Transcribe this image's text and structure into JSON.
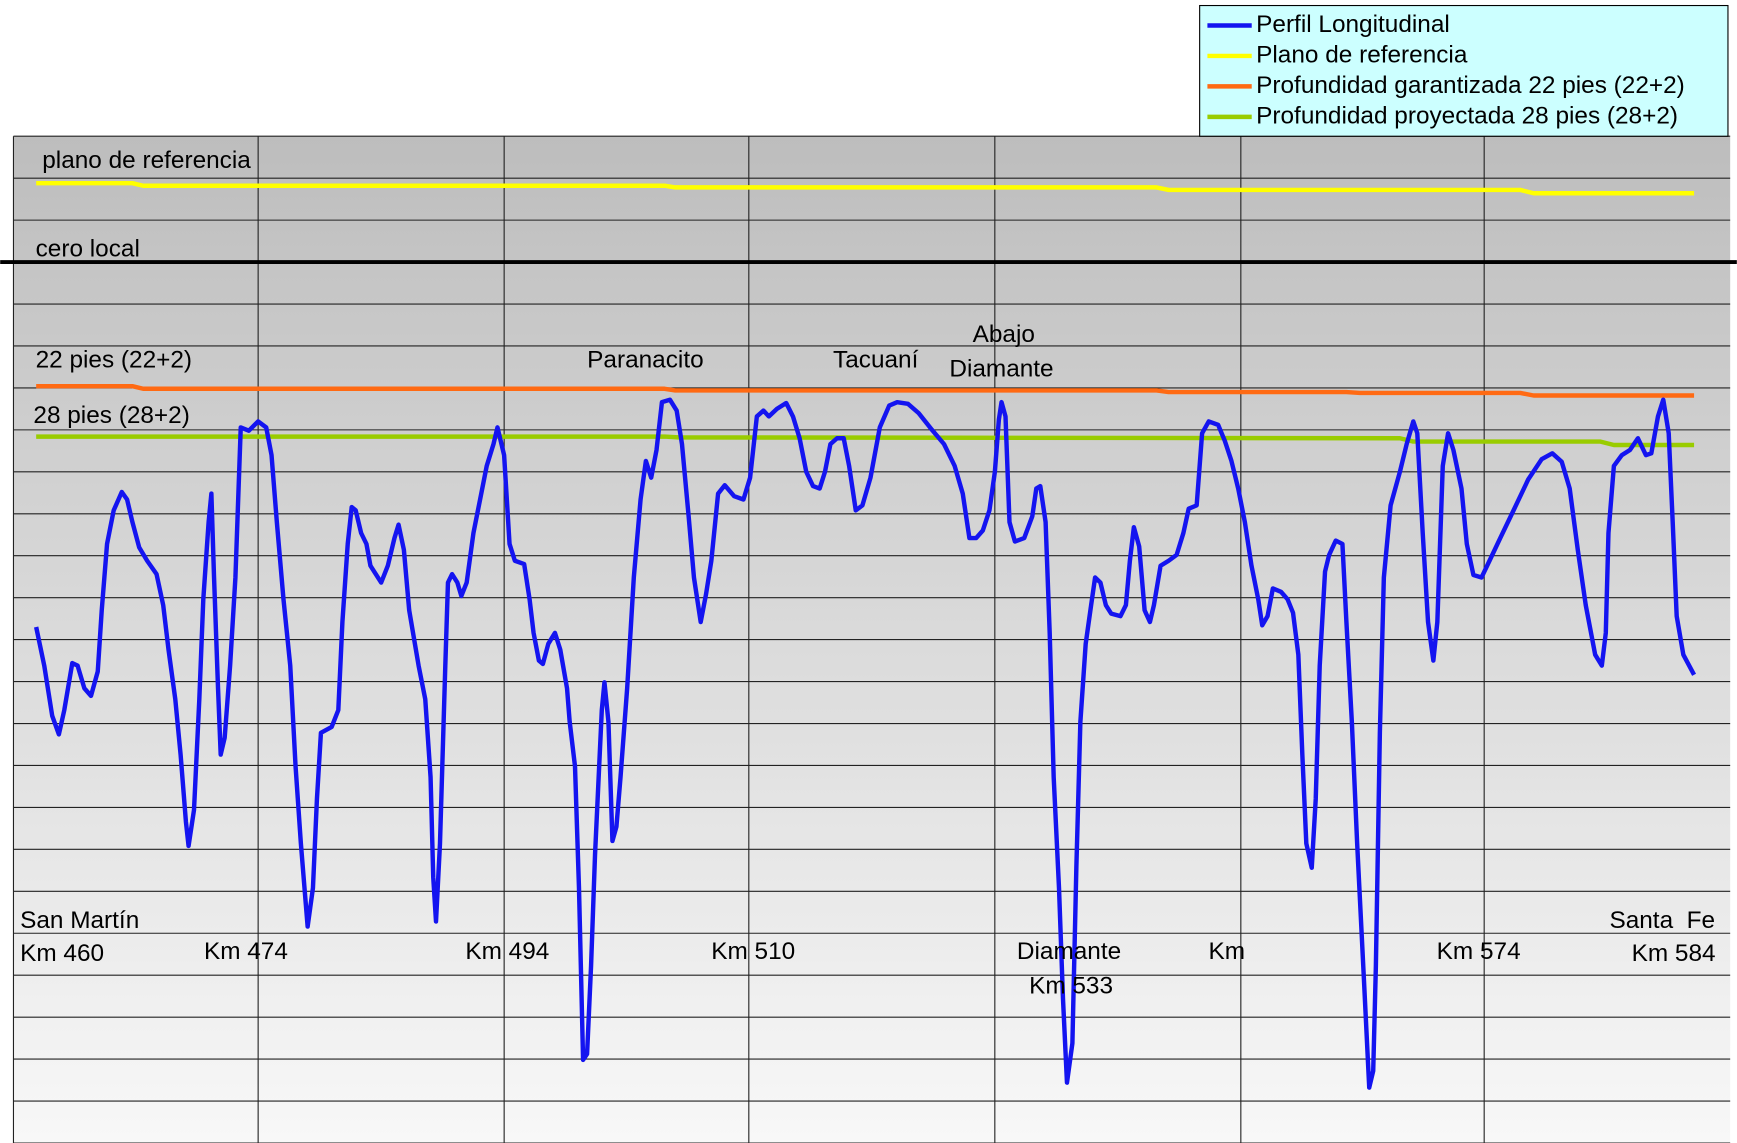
{
  "chart_data": {
    "type": "line",
    "xlim": [
      458.3,
      586.7
    ],
    "xticks": [
      476.6,
      495,
      513.3,
      531.7,
      550.1,
      568.3
    ],
    "ylim": [
      -105,
      15
    ],
    "yticks": [
      -105,
      -100,
      -95,
      -90,
      -85,
      -80,
      -75,
      -70,
      -65,
      -60,
      -55,
      -50,
      -45,
      -40,
      -35,
      -30,
      -25,
      -20,
      -15,
      -10,
      -5,
      0,
      5,
      10,
      15
    ],
    "grid": true,
    "legend": "top-right",
    "reference_lines": [
      {
        "label": "cero local",
        "value": 0,
        "color": "#000000"
      }
    ],
    "annotations": [
      "plano de referencia",
      "22 pies (22+2)",
      "28 pies (28+2)",
      "Paranacito",
      "Tacuaní",
      "Abajo",
      "Diamante",
      "San Martín",
      "Km 460",
      "Km 474",
      "Km 494",
      "Km 510",
      "Diamante",
      "Km 533",
      "Km",
      "Km 574",
      "Santa  Fe",
      "Km 584"
    ],
    "series": [
      {
        "name": "Perfil Longitudinal",
        "color": "#1414f0",
        "x": [
          460.0,
          460.6,
          461.2,
          461.7,
          462.1,
          462.7,
          463.1,
          463.6,
          464.1,
          464.6,
          464.9,
          465.3,
          465.8,
          466.4,
          466.8,
          467.2,
          467.7,
          468.3,
          469.0,
          469.5,
          469.9,
          470.4,
          470.8,
          471.2,
          471.4,
          471.8,
          472.2,
          472.5,
          472.9,
          473.1,
          473.3,
          473.6,
          473.8,
          474.1,
          474.5,
          474.9,
          475.3,
          475.9,
          476.6,
          477.2,
          477.6,
          478.0,
          478.5,
          479.0,
          479.4,
          479.8,
          480.3,
          480.7,
          481.0,
          481.3,
          482.1,
          482.6,
          482.9,
          483.3,
          483.6,
          483.9,
          484.3,
          484.7,
          485.0,
          485.8,
          486.3,
          486.8,
          487.1,
          487.5,
          487.9,
          488.6,
          489.1,
          489.5,
          489.7,
          489.9,
          490.2,
          490.6,
          490.8,
          491.1,
          491.5,
          491.8,
          492.2,
          492.7,
          493.2,
          493.7,
          494.2,
          494.5,
          495.0,
          495.4,
          495.8,
          496.5,
          496.9,
          497.2,
          497.6,
          497.9,
          498.3,
          498.8,
          499.2,
          499.7,
          499.9,
          500.3,
          500.6,
          500.9,
          501.2,
          501.5,
          501.8,
          502.3,
          502.5,
          502.8,
          503.1,
          503.4,
          503.7,
          504.2,
          504.7,
          505.2,
          505.6,
          506.0,
          506.4,
          506.8,
          507.4,
          507.9,
          508.3,
          508.8,
          509.2,
          509.7,
          510.1,
          510.5,
          511.0,
          511.5,
          512.2,
          512.9,
          513.4,
          513.9,
          514.4,
          514.8,
          515.4,
          516.1,
          516.6,
          517.1,
          517.6,
          518.1,
          518.6,
          519.0,
          519.4,
          519.9,
          520.4,
          520.8,
          521.3,
          521.8,
          522.4,
          523.1,
          523.8,
          524.4,
          525.2,
          526.0,
          527.0,
          527.9,
          528.7,
          529.3,
          529.8,
          530.3,
          530.8,
          531.3,
          531.7,
          532.0,
          532.2,
          532.5,
          532.8,
          533.2,
          533.9,
          534.5,
          534.8,
          535.1,
          535.5,
          535.8,
          536.1,
          536.5,
          536.8,
          537.1,
          537.5,
          537.8,
          538.1,
          538.5,
          538.9,
          539.2,
          539.6,
          540.0,
          540.4,
          541.1,
          541.5,
          541.8,
          542.1,
          542.5,
          542.9,
          543.3,
          543.6,
          544.1,
          544.7,
          545.3,
          545.8,
          546.2,
          546.8,
          547.2,
          547.7,
          548.4,
          548.9,
          549.4,
          549.9,
          550.4,
          550.9,
          551.4,
          551.7,
          552.1,
          552.5,
          553.1,
          553.6,
          554.0,
          554.4,
          554.7,
          555.0,
          555.4,
          555.7,
          556.0,
          556.4,
          556.7,
          557.2,
          557.7,
          558.0,
          558.4,
          558.8,
          559.3,
          559.7,
          560.0,
          560.2,
          560.5,
          560.8,
          561.3,
          562.0,
          562.5,
          563.0,
          563.3,
          563.7,
          564.1,
          564.5,
          564.8,
          565.2,
          565.6,
          566.0,
          566.6,
          567.0,
          567.5,
          568.1,
          568.7,
          569.5,
          570.5,
          571.6,
          572.6,
          573.4,
          574.1,
          574.7,
          575.3,
          575.9,
          576.6,
          577.1,
          577.4,
          577.6,
          578.0,
          578.6,
          579.2,
          579.8,
          580.4,
          580.8,
          581.3,
          581.7,
          582.1,
          582.4,
          582.7,
          583.2,
          584.0
        ],
        "values": [
          -43.5,
          -48.1,
          -54.1,
          -56.3,
          -53.4,
          -47.8,
          -48.1,
          -50.8,
          -51.7,
          -48.8,
          -41.5,
          -33.6,
          -29.6,
          -27.4,
          -28.3,
          -31.0,
          -34.0,
          -35.6,
          -37.2,
          -40.9,
          -46.2,
          -52.1,
          -58.7,
          -66.7,
          -69.6,
          -65.3,
          -52.1,
          -40.2,
          -31.0,
          -27.6,
          -37.6,
          -50.8,
          -58.7,
          -56.7,
          -48.1,
          -37.6,
          -19.7,
          -20.1,
          -19.0,
          -19.7,
          -23.0,
          -31.0,
          -40.2,
          -48.1,
          -60.1,
          -69.3,
          -79.2,
          -74.6,
          -64.0,
          -56.1,
          -55.4,
          -53.4,
          -42.9,
          -33.6,
          -29.2,
          -29.6,
          -32.3,
          -33.6,
          -36.2,
          -38.2,
          -36.2,
          -32.9,
          -31.3,
          -34.3,
          -41.5,
          -48.1,
          -52.1,
          -61.4,
          -73.3,
          -78.6,
          -69.3,
          -48.1,
          -38.2,
          -37.2,
          -38.2,
          -39.8,
          -38.2,
          -32.3,
          -28.3,
          -24.3,
          -21.7,
          -19.7,
          -23.0,
          -33.6,
          -35.6,
          -36.0,
          -40.2,
          -44.2,
          -47.5,
          -47.9,
          -45.5,
          -44.2,
          -46.2,
          -50.8,
          -54.8,
          -60.1,
          -74.6,
          -95.1,
          -94.4,
          -83.9,
          -70.6,
          -53.4,
          -50.1,
          -54.8,
          -69.0,
          -67.3,
          -61.4,
          -50.8,
          -37.6,
          -28.3,
          -23.7,
          -25.7,
          -22.4,
          -16.7,
          -16.4,
          -17.7,
          -21.7,
          -30.3,
          -37.6,
          -42.9,
          -39.6,
          -35.6,
          -27.6,
          -26.6,
          -27.9,
          -28.3,
          -25.7,
          -18.4,
          -17.7,
          -18.4,
          -17.5,
          -16.8,
          -18.4,
          -21.0,
          -25.0,
          -26.7,
          -27.0,
          -25.0,
          -21.7,
          -21.0,
          -21.0,
          -24.3,
          -29.6,
          -29.0,
          -25.7,
          -19.7,
          -17.1,
          -16.7,
          -16.9,
          -18.0,
          -20.0,
          -21.7,
          -24.3,
          -27.6,
          -32.9,
          -32.9,
          -32.0,
          -29.6,
          -25.0,
          -18.8,
          -16.7,
          -18.4,
          -31.0,
          -33.3,
          -32.9,
          -30.3,
          -27.0,
          -26.7,
          -31.0,
          -44.2,
          -61.4,
          -74.6,
          -87.8,
          -97.8,
          -93.1,
          -72.0,
          -54.8,
          -45.5,
          -40.9,
          -37.6,
          -38.2,
          -40.9,
          -41.9,
          -42.2,
          -40.9,
          -35.6,
          -31.6,
          -33.9,
          -41.5,
          -42.9,
          -40.9,
          -36.2,
          -35.6,
          -34.9,
          -32.3,
          -29.4,
          -29.0,
          -20.4,
          -19.0,
          -19.4,
          -21.3,
          -23.7,
          -27.0,
          -31.0,
          -36.2,
          -40.2,
          -43.3,
          -42.2,
          -38.9,
          -39.3,
          -40.2,
          -41.8,
          -46.8,
          -58.7,
          -69.3,
          -72.2,
          -64.0,
          -48.1,
          -36.9,
          -34.9,
          -33.2,
          -33.6,
          -42.9,
          -54.8,
          -69.3,
          -85.2,
          -98.4,
          -96.4,
          -83.9,
          -56.1,
          -37.6,
          -29.0,
          -25.0,
          -21.7,
          -19.0,
          -20.4,
          -32.3,
          -42.9,
          -47.5,
          -42.9,
          -24.3,
          -20.4,
          -22.4,
          -27.0,
          -33.6,
          -37.3,
          -37.6,
          -35.6,
          -32.9,
          -29.6,
          -25.9,
          -23.5,
          -22.8,
          -23.8,
          -27.0,
          -34.3,
          -40.9,
          -46.8,
          -48.1,
          -44.2,
          -32.3,
          -24.3,
          -23.0,
          -22.4,
          -21.0,
          -23.0,
          -22.8,
          -18.4,
          -16.4,
          -20.4,
          -31.0,
          -42.2,
          -46.8,
          -49.2
        ]
      },
      {
        "name": "Plano de referencia",
        "color": "#ffff00",
        "x": [
          460,
          467.2,
          468,
          507,
          507.8,
          543.8,
          544.7,
          558,
          571,
          572,
          584
        ],
        "values": [
          9.4,
          9.4,
          9.1,
          9.1,
          8.9,
          8.9,
          8.6,
          8.6,
          8.6,
          8.2,
          8.2
        ]
      },
      {
        "name": "Profundidad garantizada 22 pies (22+2)",
        "color": "#ff6a13",
        "x": [
          460,
          467.2,
          468,
          507,
          507.8,
          543.8,
          544.7,
          558,
          559,
          571,
          572,
          584
        ],
        "values": [
          -14.8,
          -14.8,
          -15.1,
          -15.1,
          -15.3,
          -15.3,
          -15.5,
          -15.5,
          -15.6,
          -15.6,
          -15.9,
          -15.9
        ]
      },
      {
        "name": "Profundidad proyectada 28 pies (28+2)",
        "color": "#99cc00",
        "x": [
          460,
          507,
          508,
          562,
          563,
          577,
          578,
          584
        ],
        "values": [
          -20.8,
          -20.8,
          -20.9,
          -21.0,
          -21.4,
          -21.4,
          -21.8,
          -21.8
        ]
      }
    ]
  }
}
